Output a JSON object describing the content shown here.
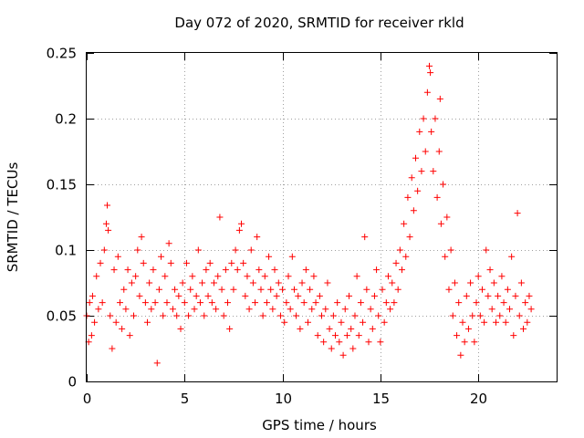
{
  "chart_data": {
    "type": "scatter",
    "title": "Day 072 of 2020, SRMTID for receiver rkld",
    "xlabel": "GPS time / hours",
    "ylabel": "SRMTID / TECUs",
    "xlim": [
      0,
      24
    ],
    "ylim": [
      0,
      0.25
    ],
    "xticks": [
      0,
      5,
      10,
      15,
      20
    ],
    "yticks": [
      0,
      0.05,
      0.1,
      0.15,
      0.2,
      0.25
    ],
    "xtick_labels": [
      "0",
      "5",
      "10",
      "15",
      "20"
    ],
    "ytick_labels": [
      "0",
      "0.05",
      "0.1",
      "0.15",
      "0.2",
      "0.25"
    ],
    "grid": true,
    "marker": "+",
    "color": "#ff0000",
    "series": [
      {
        "name": "SRMTID",
        "points": [
          [
            0.0,
            0.05
          ],
          [
            0.1,
            0.03
          ],
          [
            0.15,
            0.06
          ],
          [
            0.25,
            0.035
          ],
          [
            0.3,
            0.065
          ],
          [
            0.4,
            0.045
          ],
          [
            0.5,
            0.08
          ],
          [
            0.6,
            0.055
          ],
          [
            0.7,
            0.09
          ],
          [
            0.8,
            0.06
          ],
          [
            0.9,
            0.1
          ],
          [
            1.0,
            0.12
          ],
          [
            1.05,
            0.134
          ],
          [
            1.1,
            0.115
          ],
          [
            1.2,
            0.05
          ],
          [
            1.3,
            0.025
          ],
          [
            1.4,
            0.085
          ],
          [
            1.5,
            0.045
          ],
          [
            1.6,
            0.095
          ],
          [
            1.7,
            0.06
          ],
          [
            1.8,
            0.04
          ],
          [
            1.9,
            0.07
          ],
          [
            2.0,
            0.055
          ],
          [
            2.1,
            0.085
          ],
          [
            2.2,
            0.035
          ],
          [
            2.3,
            0.075
          ],
          [
            2.4,
            0.05
          ],
          [
            2.5,
            0.08
          ],
          [
            2.6,
            0.1
          ],
          [
            2.7,
            0.065
          ],
          [
            2.8,
            0.11
          ],
          [
            2.9,
            0.09
          ],
          [
            3.0,
            0.06
          ],
          [
            3.1,
            0.045
          ],
          [
            3.2,
            0.075
          ],
          [
            3.3,
            0.055
          ],
          [
            3.4,
            0.085
          ],
          [
            3.5,
            0.06
          ],
          [
            3.6,
            0.014
          ],
          [
            3.7,
            0.07
          ],
          [
            3.8,
            0.095
          ],
          [
            3.9,
            0.05
          ],
          [
            4.0,
            0.08
          ],
          [
            4.1,
            0.06
          ],
          [
            4.2,
            0.105
          ],
          [
            4.3,
            0.09
          ],
          [
            4.4,
            0.055
          ],
          [
            4.5,
            0.07
          ],
          [
            4.6,
            0.05
          ],
          [
            4.7,
            0.065
          ],
          [
            4.8,
            0.04
          ],
          [
            4.9,
            0.075
          ],
          [
            5.0,
            0.06
          ],
          [
            5.1,
            0.09
          ],
          [
            5.2,
            0.05
          ],
          [
            5.3,
            0.07
          ],
          [
            5.4,
            0.08
          ],
          [
            5.5,
            0.055
          ],
          [
            5.6,
            0.065
          ],
          [
            5.7,
            0.1
          ],
          [
            5.8,
            0.06
          ],
          [
            5.9,
            0.075
          ],
          [
            6.0,
            0.05
          ],
          [
            6.1,
            0.085
          ],
          [
            6.2,
            0.065
          ],
          [
            6.3,
            0.09
          ],
          [
            6.4,
            0.06
          ],
          [
            6.5,
            0.075
          ],
          [
            6.6,
            0.055
          ],
          [
            6.7,
            0.08
          ],
          [
            6.8,
            0.125
          ],
          [
            6.9,
            0.07
          ],
          [
            7.0,
            0.05
          ],
          [
            7.1,
            0.085
          ],
          [
            7.2,
            0.06
          ],
          [
            7.3,
            0.04
          ],
          [
            7.4,
            0.09
          ],
          [
            7.5,
            0.07
          ],
          [
            7.6,
            0.1
          ],
          [
            7.7,
            0.085
          ],
          [
            7.8,
            0.115
          ],
          [
            7.9,
            0.12
          ],
          [
            8.0,
            0.09
          ],
          [
            8.1,
            0.065
          ],
          [
            8.2,
            0.08
          ],
          [
            8.3,
            0.055
          ],
          [
            8.4,
            0.1
          ],
          [
            8.5,
            0.075
          ],
          [
            8.6,
            0.06
          ],
          [
            8.7,
            0.11
          ],
          [
            8.8,
            0.085
          ],
          [
            8.9,
            0.07
          ],
          [
            9.0,
            0.05
          ],
          [
            9.1,
            0.08
          ],
          [
            9.2,
            0.06
          ],
          [
            9.3,
            0.095
          ],
          [
            9.4,
            0.07
          ],
          [
            9.5,
            0.055
          ],
          [
            9.6,
            0.085
          ],
          [
            9.7,
            0.065
          ],
          [
            9.8,
            0.075
          ],
          [
            9.9,
            0.05
          ],
          [
            10.0,
            0.07
          ],
          [
            10.1,
            0.045
          ],
          [
            10.2,
            0.06
          ],
          [
            10.3,
            0.08
          ],
          [
            10.4,
            0.055
          ],
          [
            10.5,
            0.095
          ],
          [
            10.6,
            0.07
          ],
          [
            10.7,
            0.05
          ],
          [
            10.8,
            0.065
          ],
          [
            10.9,
            0.04
          ],
          [
            11.0,
            0.075
          ],
          [
            11.1,
            0.06
          ],
          [
            11.2,
            0.085
          ],
          [
            11.3,
            0.045
          ],
          [
            11.4,
            0.07
          ],
          [
            11.5,
            0.055
          ],
          [
            11.6,
            0.08
          ],
          [
            11.7,
            0.06
          ],
          [
            11.8,
            0.035
          ],
          [
            11.9,
            0.065
          ],
          [
            12.0,
            0.05
          ],
          [
            12.1,
            0.03
          ],
          [
            12.2,
            0.055
          ],
          [
            12.3,
            0.075
          ],
          [
            12.4,
            0.04
          ],
          [
            12.5,
            0.025
          ],
          [
            12.6,
            0.05
          ],
          [
            12.7,
            0.035
          ],
          [
            12.8,
            0.06
          ],
          [
            12.9,
            0.03
          ],
          [
            13.0,
            0.045
          ],
          [
            13.1,
            0.02
          ],
          [
            13.2,
            0.055
          ],
          [
            13.3,
            0.035
          ],
          [
            13.4,
            0.065
          ],
          [
            13.5,
            0.04
          ],
          [
            13.6,
            0.025
          ],
          [
            13.7,
            0.05
          ],
          [
            13.8,
            0.08
          ],
          [
            13.9,
            0.035
          ],
          [
            14.0,
            0.06
          ],
          [
            14.1,
            0.045
          ],
          [
            14.2,
            0.11
          ],
          [
            14.3,
            0.07
          ],
          [
            14.4,
            0.03
          ],
          [
            14.5,
            0.055
          ],
          [
            14.6,
            0.04
          ],
          [
            14.7,
            0.065
          ],
          [
            14.8,
            0.085
          ],
          [
            14.9,
            0.05
          ],
          [
            15.0,
            0.03
          ],
          [
            15.1,
            0.07
          ],
          [
            15.2,
            0.045
          ],
          [
            15.3,
            0.06
          ],
          [
            15.4,
            0.08
          ],
          [
            15.5,
            0.055
          ],
          [
            15.6,
            0.075
          ],
          [
            15.7,
            0.06
          ],
          [
            15.8,
            0.09
          ],
          [
            15.9,
            0.07
          ],
          [
            16.0,
            0.1
          ],
          [
            16.1,
            0.085
          ],
          [
            16.2,
            0.12
          ],
          [
            16.3,
            0.095
          ],
          [
            16.4,
            0.14
          ],
          [
            16.5,
            0.11
          ],
          [
            16.6,
            0.155
          ],
          [
            16.7,
            0.13
          ],
          [
            16.8,
            0.17
          ],
          [
            16.9,
            0.145
          ],
          [
            17.0,
            0.19
          ],
          [
            17.1,
            0.16
          ],
          [
            17.2,
            0.2
          ],
          [
            17.3,
            0.175
          ],
          [
            17.4,
            0.22
          ],
          [
            17.5,
            0.24
          ],
          [
            17.55,
            0.235
          ],
          [
            17.6,
            0.19
          ],
          [
            17.7,
            0.16
          ],
          [
            17.8,
            0.2
          ],
          [
            17.9,
            0.14
          ],
          [
            18.0,
            0.175
          ],
          [
            18.05,
            0.215
          ],
          [
            18.1,
            0.12
          ],
          [
            18.2,
            0.15
          ],
          [
            18.3,
            0.095
          ],
          [
            18.4,
            0.125
          ],
          [
            18.5,
            0.07
          ],
          [
            18.6,
            0.1
          ],
          [
            18.7,
            0.05
          ],
          [
            18.8,
            0.075
          ],
          [
            18.9,
            0.035
          ],
          [
            19.0,
            0.06
          ],
          [
            19.1,
            0.02
          ],
          [
            19.2,
            0.045
          ],
          [
            19.3,
            0.03
          ],
          [
            19.4,
            0.065
          ],
          [
            19.5,
            0.04
          ],
          [
            19.6,
            0.075
          ],
          [
            19.7,
            0.05
          ],
          [
            19.8,
            0.03
          ],
          [
            19.9,
            0.06
          ],
          [
            20.0,
            0.08
          ],
          [
            20.1,
            0.05
          ],
          [
            20.2,
            0.07
          ],
          [
            20.3,
            0.045
          ],
          [
            20.4,
            0.1
          ],
          [
            20.5,
            0.065
          ],
          [
            20.6,
            0.085
          ],
          [
            20.7,
            0.055
          ],
          [
            20.8,
            0.075
          ],
          [
            20.9,
            0.045
          ],
          [
            21.0,
            0.065
          ],
          [
            21.1,
            0.05
          ],
          [
            21.2,
            0.08
          ],
          [
            21.3,
            0.06
          ],
          [
            21.4,
            0.045
          ],
          [
            21.5,
            0.07
          ],
          [
            21.6,
            0.055
          ],
          [
            21.7,
            0.095
          ],
          [
            21.8,
            0.035
          ],
          [
            21.9,
            0.065
          ],
          [
            22.0,
            0.128
          ],
          [
            22.1,
            0.05
          ],
          [
            22.2,
            0.075
          ],
          [
            22.3,
            0.04
          ],
          [
            22.4,
            0.06
          ],
          [
            22.5,
            0.045
          ],
          [
            22.6,
            0.065
          ],
          [
            22.7,
            0.055
          ]
        ]
      }
    ]
  }
}
